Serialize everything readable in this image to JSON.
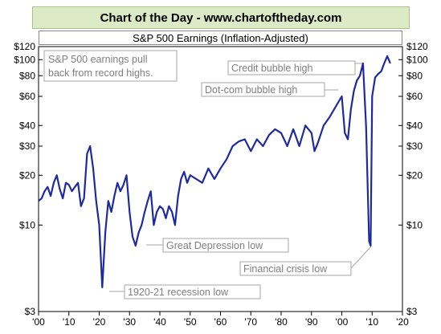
{
  "header": {
    "banner": "Chart of the Day - www.chartoftheday.com"
  },
  "chart_data": {
    "type": "line",
    "title": "S&P 500 Earnings (Inflation-Adjusted)",
    "ylabel": "",
    "xlabel": "",
    "yscale": "log",
    "ylim": [
      3,
      120
    ],
    "xlim": [
      1900,
      2020
    ],
    "y_ticks": [
      {
        "value": 120,
        "label": "$120"
      },
      {
        "value": 100,
        "label": "$100"
      },
      {
        "value": 80,
        "label": "$80"
      },
      {
        "value": 60,
        "label": "$60"
      },
      {
        "value": 40,
        "label": "$40"
      },
      {
        "value": 30,
        "label": "$30"
      },
      {
        "value": 20,
        "label": "$20"
      },
      {
        "value": 10,
        "label": "$10"
      },
      {
        "value": 3,
        "label": "$3"
      }
    ],
    "x_ticks": [
      {
        "value": 1900,
        "label": "'00"
      },
      {
        "value": 1910,
        "label": "'10"
      },
      {
        "value": 1920,
        "label": "'20"
      },
      {
        "value": 1930,
        "label": "'30"
      },
      {
        "value": 1940,
        "label": "'40"
      },
      {
        "value": 1950,
        "label": "'50"
      },
      {
        "value": 1960,
        "label": "'60"
      },
      {
        "value": 1970,
        "label": "'70"
      },
      {
        "value": 1980,
        "label": "'80"
      },
      {
        "value": 1990,
        "label": "'90"
      },
      {
        "value": 2000,
        "label": "'00"
      },
      {
        "value": 2010,
        "label": "'10"
      },
      {
        "value": 2020,
        "label": "'20"
      }
    ],
    "grid": false,
    "series": [
      {
        "color": "#1f2a9e",
        "x": [
          1900,
          1901,
          1902,
          1903,
          1904,
          1905,
          1906,
          1907,
          1908,
          1909,
          1910,
          1911,
          1912,
          1913,
          1914,
          1915,
          1916,
          1917,
          1918,
          1919,
          1920,
          1921,
          1922,
          1923,
          1924,
          1925,
          1926,
          1927,
          1928,
          1929,
          1930,
          1931,
          1932,
          1933,
          1934,
          1935,
          1936,
          1937,
          1938,
          1939,
          1940,
          1941,
          1942,
          1943,
          1944,
          1945,
          1946,
          1947,
          1948,
          1949,
          1950,
          1952,
          1954,
          1956,
          1958,
          1960,
          1962,
          1964,
          1966,
          1968,
          1970,
          1972,
          1974,
          1976,
          1978,
          1980,
          1982,
          1984,
          1986,
          1988,
          1990,
          1991,
          1992,
          1994,
          1996,
          1998,
          2000,
          2001,
          2002,
          2003,
          2004,
          2005,
          2006,
          2007,
          2008,
          2009,
          2009.5,
          2010,
          2011,
          2012,
          2013,
          2014,
          2015,
          2016
        ],
        "y": [
          14,
          14.5,
          16,
          17,
          15,
          18,
          20,
          16.5,
          14.5,
          18,
          17.5,
          16,
          17,
          18,
          13,
          14.5,
          27,
          30,
          22,
          14,
          10,
          4.2,
          9,
          14,
          12,
          15,
          18,
          16,
          17.5,
          20,
          12,
          8.5,
          7.5,
          9,
          10,
          12,
          14,
          16,
          10,
          12,
          13,
          12.5,
          11,
          13,
          12,
          10,
          15,
          19,
          21,
          18,
          20,
          19,
          18,
          22,
          19,
          22,
          25,
          30,
          32,
          33,
          28,
          33,
          30,
          35,
          38,
          36,
          30,
          38,
          30,
          40,
          36,
          28,
          31,
          40,
          45,
          52,
          60,
          36,
          33,
          50,
          65,
          75,
          80,
          95,
          40,
          8,
          7.5,
          60,
          78,
          82,
          85,
          95,
          105,
          95
        ]
      }
    ],
    "annotations": [
      {
        "text": "S&P 500 earnings pull back from record highs.",
        "lines": [
          "S&P 500 earnings pull",
          "back from record highs."
        ]
      },
      {
        "text": "Credit bubble high",
        "x": 2007,
        "y": 98
      },
      {
        "text": "Dot-com bubble high",
        "x": 2000,
        "y": 65
      },
      {
        "text": "Great Depression low",
        "x": 1932,
        "y": 7.5
      },
      {
        "text": "Financial crisis low",
        "x": 2009,
        "y": 7.5
      },
      {
        "text": "1920-21 recession low",
        "x": 1921,
        "y": 4.2
      }
    ]
  }
}
